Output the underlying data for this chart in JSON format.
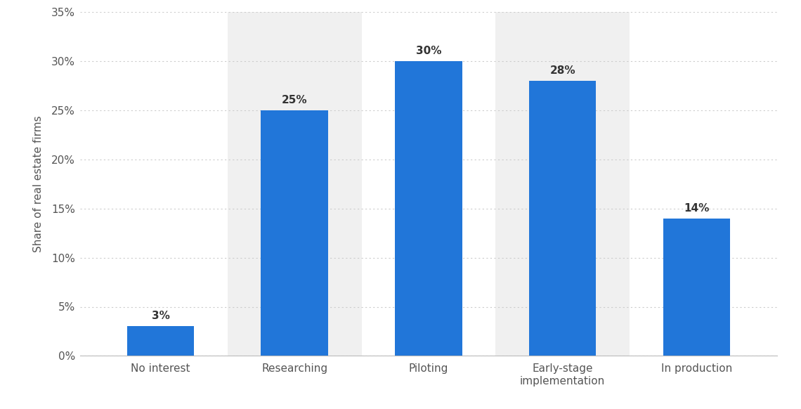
{
  "categories": [
    "No interest",
    "Researching",
    "Piloting",
    "Early-stage\nimplementation",
    "In production"
  ],
  "values": [
    3,
    25,
    30,
    28,
    14
  ],
  "bar_color": "#2176d9",
  "highlight_bg_color": "#f0f0f0",
  "highlight_indices": [
    1,
    3
  ],
  "ylabel": "Share of real estate firms",
  "ylim": [
    0,
    35
  ],
  "yticks": [
    0,
    5,
    10,
    15,
    20,
    25,
    30,
    35
  ],
  "ytick_labels": [
    "0%",
    "5%",
    "10%",
    "15%",
    "20%",
    "25%",
    "30%",
    "35%"
  ],
  "bar_width": 0.5,
  "label_fontsize": 11,
  "tick_fontsize": 11,
  "ylabel_fontsize": 11,
  "background_color": "#ffffff",
  "grid_color": "#cccccc",
  "text_color": "#555555",
  "label_color": "#333333"
}
